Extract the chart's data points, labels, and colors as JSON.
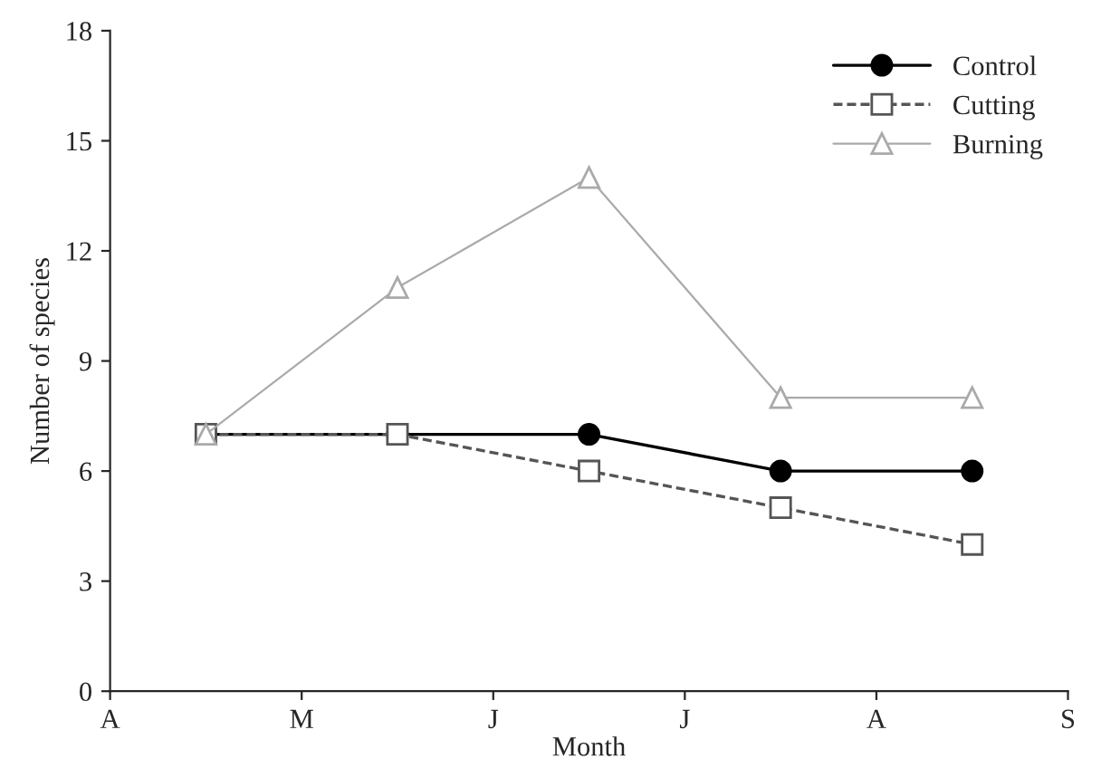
{
  "chart_data": {
    "type": "line",
    "xlabel": "Month",
    "ylabel": "Number of species",
    "categories": [
      "A",
      null,
      "M",
      null,
      "J",
      null,
      "J",
      null,
      "A",
      null,
      "S"
    ],
    "ylim": [
      0,
      18
    ],
    "yticks": [
      0,
      3,
      6,
      9,
      12,
      15,
      18
    ],
    "legend": "top right",
    "grid": false,
    "series": [
      {
        "name": "Control",
        "color": "#000000",
        "marker": "circle",
        "line_style": "solid",
        "values": [
          null,
          7,
          null,
          7,
          null,
          7,
          null,
          6,
          null,
          6,
          null
        ]
      },
      {
        "name": "Cutting",
        "color": "#555555",
        "marker": "square",
        "line_style": "dashed",
        "values": [
          null,
          7,
          null,
          7,
          null,
          6,
          null,
          5,
          null,
          4,
          null
        ]
      },
      {
        "name": "Burning",
        "color": "#aaaaaa",
        "marker": "triangle",
        "line_style": "solid",
        "values": [
          null,
          7,
          null,
          11,
          null,
          14,
          null,
          8,
          null,
          8,
          null
        ]
      }
    ]
  }
}
